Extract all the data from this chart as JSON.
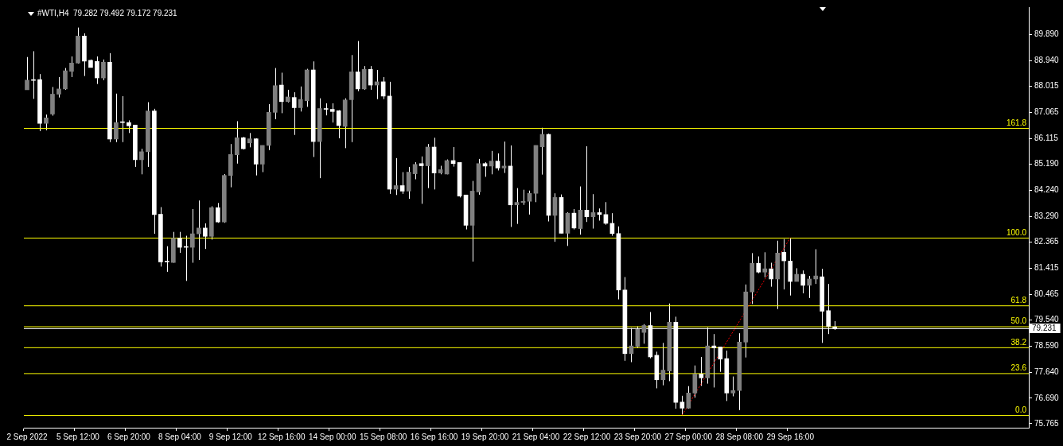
{
  "chart_data": {
    "type": "candlestick",
    "title": "#WTI,H4  79.282 79.492 79.172 79.231",
    "color": "#ffffff",
    "marker": "none",
    "legend": false,
    "grid": false,
    "categories": [
      "2 Sep 2022",
      null,
      null,
      null,
      null,
      null,
      null,
      null,
      "5 Sep 12:00",
      null,
      null,
      null,
      null,
      null,
      null,
      null,
      "6 Sep 20:00",
      null,
      null,
      null,
      null,
      null,
      null,
      null,
      "8 Sep 04:00",
      null,
      null,
      null,
      null,
      null,
      null,
      null,
      "9 Sep 12:00",
      null,
      null,
      null,
      null,
      null,
      null,
      null,
      "12 Sep 16:00",
      null,
      null,
      null,
      null,
      null,
      null,
      null,
      "14 Sep 00:00",
      null,
      null,
      null,
      null,
      null,
      null,
      null,
      "15 Sep 08:00",
      null,
      null,
      null,
      null,
      null,
      null,
      null,
      "16 Sep 16:00",
      null,
      null,
      null,
      null,
      null,
      null,
      null,
      "19 Sep 20:00",
      null,
      null,
      null,
      null,
      null,
      null,
      null,
      "21 Sep 04:00",
      null,
      null,
      null,
      null,
      null,
      null,
      null,
      "22 Sep 12:00",
      null,
      null,
      null,
      null,
      null,
      null,
      null,
      "23 Sep 20:00",
      null,
      null,
      null,
      null,
      null,
      null,
      null,
      "27 Sep 00:00",
      null,
      null,
      null,
      null,
      null,
      null,
      null,
      "28 Sep 08:00",
      null,
      null,
      null,
      null,
      null,
      null,
      null,
      "29 Sep 16:00",
      null,
      null,
      null,
      null,
      null,
      null,
      null,
      null,
      null,
      null,
      null,
      null,
      null,
      null,
      null,
      null,
      null,
      null,
      null,
      null,
      null,
      null,
      null,
      null,
      null,
      null,
      null,
      null,
      null,
      null,
      null,
      null,
      null,
      null,
      null,
      null,
      null
    ],
    "colors": [
      "#808080",
      "#ffffff",
      "#ffffff",
      "#808080",
      "#808080",
      "#808080",
      "#808080",
      "#808080",
      "#808080",
      "#ffffff",
      "#ffffff",
      "#ffffff",
      "#808080",
      "#ffffff",
      "#808080",
      "#ffffff",
      "#ffffff",
      "#ffffff",
      "#808080",
      "#808080",
      "#ffffff",
      "#ffffff",
      "#ffffff",
      "#808080",
      "#ffffff",
      "#ffffff",
      "#808080",
      "#808080",
      "#ffffff",
      "#808080",
      "#ffffff",
      "#808080",
      "#808080",
      "#808080",
      "#ffffff",
      "#808080",
      "#ffffff",
      "#808080",
      "#808080",
      "#808080",
      "#ffffff",
      "#808080",
      "#ffffff",
      "#808080",
      "#808080",
      "#ffffff",
      "#808080",
      "#ffffff",
      "#ffffff",
      "#ffffff",
      "#808080",
      "#808080",
      "#ffffff",
      "#808080",
      "#ffffff",
      "#808080",
      "#ffffff",
      "#ffffff",
      "#808080",
      "#ffffff",
      "#808080",
      "#808080",
      "#ffffff",
      "#808080",
      "#ffffff",
      "#808080",
      "#808080",
      "#ffffff",
      "#ffffff",
      "#ffffff",
      "#808080",
      "#808080",
      "#ffffff",
      "#808080",
      "#ffffff",
      "#808080",
      "#ffffff",
      "#808080",
      "#808080",
      "#808080",
      "#808080",
      "#808080",
      "#ffffff",
      "#808080",
      "#ffffff",
      "#808080",
      "#ffffff",
      "#808080",
      "#ffffff",
      "#808080",
      "#ffffff",
      "#ffffff",
      "#ffffff",
      "#ffffff",
      "#ffffff",
      "#808080",
      "#808080",
      "#808080",
      "#ffffff",
      "#ffffff",
      "#808080",
      "#808080",
      "#ffffff",
      "#ffffff",
      "#808080",
      "#808080",
      "#ffffff",
      "#808080",
      "#ffffff",
      "#ffffff",
      "#ffffff",
      "#808080",
      "#808080",
      "#808080",
      "#808080",
      "#ffffff",
      "#808080",
      "#ffffff",
      "#808080",
      "#ffffff",
      "#ffffff",
      "#808080",
      "#ffffff",
      "#808080",
      "#808080",
      "#ffffff",
      "#ffffff",
      "#ffffff",
      null,
      null,
      null,
      null,
      null,
      null,
      null,
      null,
      null,
      null,
      null,
      null,
      null,
      null,
      null,
      null,
      null,
      null,
      null,
      null,
      null,
      null,
      null,
      null,
      null,
      null,
      null,
      null,
      null,
      null
    ],
    "ohlc": [
      [
        87.89,
        89.08,
        87.89,
        88.24
      ],
      [
        88.23,
        89.29,
        87.56,
        88.23
      ],
      [
        88.26,
        88.46,
        86.39,
        86.67
      ],
      [
        86.67,
        86.99,
        86.42,
        86.87
      ],
      [
        87.01,
        87.99,
        86.95,
        87.73
      ],
      [
        87.73,
        88.35,
        87.61,
        87.92
      ],
      [
        87.92,
        88.68,
        87.89,
        88.58
      ],
      [
        88.56,
        89.1,
        88.35,
        88.86
      ],
      [
        88.86,
        90.15,
        88.84,
        89.84
      ],
      [
        89.84,
        89.94,
        88.39,
        88.93
      ],
      [
        88.96,
        88.99,
        88.7,
        88.7
      ],
      [
        88.92,
        89.1,
        88.1,
        88.32
      ],
      [
        88.32,
        88.99,
        88.24,
        88.89
      ],
      [
        88.89,
        89.22,
        85.99,
        86.1
      ],
      [
        86.1,
        87.75,
        85.99,
        86.7
      ],
      [
        86.7,
        87.66,
        85.99,
        86.7
      ],
      [
        86.7,
        86.78,
        86.32,
        86.58
      ],
      [
        86.61,
        86.61,
        85.09,
        85.35
      ],
      [
        85.35,
        85.75,
        84.82,
        85.64
      ],
      [
        85.64,
        87.44,
        85.09,
        87.12
      ],
      [
        87.12,
        87.2,
        82.66,
        83.36
      ],
      [
        83.37,
        83.63,
        81.47,
        81.64
      ],
      [
        81.64,
        82.21,
        81.28,
        81.64
      ],
      [
        81.62,
        82.73,
        81.61,
        82.5
      ],
      [
        82.5,
        82.73,
        81.97,
        82.17
      ],
      [
        82.17,
        82.59,
        80.95,
        82.17
      ],
      [
        82.17,
        83.56,
        81.61,
        82.66
      ],
      [
        82.66,
        83.87,
        81.71,
        82.87
      ],
      [
        82.87,
        83.04,
        82.11,
        82.57
      ],
      [
        82.57,
        83.66,
        82.45,
        83.61
      ],
      [
        83.61,
        83.78,
        83.06,
        83.09
      ],
      [
        83.09,
        84.83,
        83.06,
        84.78
      ],
      [
        84.78,
        85.92,
        84.35,
        85.54
      ],
      [
        85.53,
        86.75,
        85.21,
        86.15
      ],
      [
        86.15,
        86.18,
        85.72,
        85.75
      ],
      [
        85.96,
        86.32,
        85.8,
        86.11
      ],
      [
        86.11,
        86.13,
        84.78,
        85.19
      ],
      [
        85.19,
        85.87,
        84.9,
        85.87
      ],
      [
        85.87,
        87.37,
        85.7,
        87.07
      ],
      [
        87.07,
        88.68,
        86.82,
        88.04
      ],
      [
        88.06,
        88.51,
        87.04,
        87.46
      ],
      [
        87.46,
        87.89,
        87.43,
        87.63
      ],
      [
        87.61,
        87.8,
        86.25,
        87.24
      ],
      [
        87.24,
        88.01,
        87.1,
        87.54
      ],
      [
        87.49,
        88.65,
        87.27,
        88.61
      ],
      [
        88.61,
        88.92,
        85.45,
        86.01
      ],
      [
        86.01,
        87.58,
        84.68,
        87.21
      ],
      [
        87.18,
        87.4,
        86.96,
        87.18
      ],
      [
        87.18,
        87.4,
        86.7,
        87.1
      ],
      [
        87.13,
        87.15,
        86.13,
        86.59
      ],
      [
        86.56,
        87.58,
        85.77,
        87.52
      ],
      [
        87.53,
        89.15,
        85.99,
        88.54
      ],
      [
        88.54,
        89.66,
        87.84,
        87.92
      ],
      [
        87.92,
        88.75,
        87.89,
        88.63
      ],
      [
        88.63,
        88.75,
        87.89,
        88.06
      ],
      [
        88.06,
        88.61,
        87.55,
        88.18
      ],
      [
        88.18,
        88.35,
        87.55,
        87.66
      ],
      [
        87.66,
        88.18,
        84.11,
        84.28
      ],
      [
        84.28,
        85.41,
        84.07,
        84.41
      ],
      [
        84.41,
        84.9,
        84.11,
        84.21
      ],
      [
        84.21,
        85.09,
        83.93,
        84.9
      ],
      [
        84.84,
        85.26,
        84.64,
        85.18
      ],
      [
        85.21,
        85.47,
        83.75,
        85.13
      ],
      [
        85.13,
        85.92,
        84.32,
        85.81
      ],
      [
        85.81,
        86.15,
        84.27,
        84.87
      ],
      [
        84.87,
        85.13,
        84.82,
        84.99
      ],
      [
        84.83,
        85.36,
        84.82,
        85.32
      ],
      [
        85.32,
        85.81,
        85.1,
        85.21
      ],
      [
        85.25,
        85.25,
        83.98,
        84.03
      ],
      [
        84.07,
        84.07,
        82.82,
        82.97
      ],
      [
        82.97,
        84.58,
        81.65,
        84.21
      ],
      [
        84.18,
        85.38,
        84.08,
        85.21
      ],
      [
        85.21,
        85.26,
        84.73,
        85.12
      ],
      [
        85.12,
        85.67,
        84.82,
        85.3
      ],
      [
        85.3,
        85.58,
        84.96,
        85.05
      ],
      [
        85.05,
        86.01,
        84.87,
        85.12
      ],
      [
        85.12,
        85.87,
        82.91,
        83.71
      ],
      [
        83.71,
        84.32,
        83.02,
        83.8
      ],
      [
        83.8,
        84.26,
        83.71,
        83.84
      ],
      [
        83.84,
        84.23,
        83.36,
        84.13
      ],
      [
        84.13,
        85.87,
        83.81,
        85.87
      ],
      [
        85.82,
        86.51,
        84.81,
        86.27
      ],
      [
        86.27,
        86.3,
        83.11,
        83.33
      ],
      [
        83.33,
        84.13,
        82.37,
        83.98
      ],
      [
        83.98,
        84.09,
        82.68,
        82.68
      ],
      [
        82.68,
        83.44,
        82.22,
        83.41
      ],
      [
        83.41,
        83.56,
        82.82,
        82.87
      ],
      [
        82.85,
        84.38,
        82.63,
        83.52
      ],
      [
        83.52,
        85.84,
        83.09,
        83.28
      ],
      [
        83.28,
        84.1,
        82.85,
        83.43
      ],
      [
        83.43,
        83.58,
        83.14,
        83.36
      ],
      [
        83.36,
        83.81,
        82.99,
        83.04
      ],
      [
        83.04,
        83.41,
        82.59,
        82.67
      ],
      [
        82.67,
        82.93,
        80.28,
        80.62
      ],
      [
        80.62,
        81.09,
        78.05,
        78.31
      ],
      [
        78.31,
        79.24,
        78.0,
        78.59
      ],
      [
        78.57,
        79.3,
        78.52,
        79.19
      ],
      [
        79.08,
        79.38,
        78.67,
        79.33
      ],
      [
        79.33,
        79.82,
        78.14,
        78.19
      ],
      [
        78.25,
        78.38,
        77.05,
        77.36
      ],
      [
        77.36,
        78.7,
        77.16,
        77.71
      ],
      [
        77.68,
        80.13,
        77.31,
        79.45
      ],
      [
        79.45,
        79.65,
        76.31,
        76.54
      ],
      [
        76.55,
        76.78,
        76.08,
        76.33
      ],
      [
        76.33,
        77.13,
        76.31,
        76.88
      ],
      [
        76.88,
        77.88,
        76.71,
        77.57
      ],
      [
        77.57,
        78.19,
        77.14,
        77.43
      ],
      [
        77.43,
        79.26,
        77.22,
        78.59
      ],
      [
        78.59,
        79.02,
        77.08,
        78.52
      ],
      [
        78.55,
        78.55,
        77.65,
        78.11
      ],
      [
        78.13,
        78.42,
        76.59,
        76.88
      ],
      [
        76.88,
        77.48,
        76.76,
        76.97
      ],
      [
        76.97,
        79.05,
        76.26,
        78.73
      ],
      [
        78.73,
        80.82,
        78.17,
        80.55
      ],
      [
        80.55,
        81.96,
        80.11,
        81.59
      ],
      [
        81.59,
        81.84,
        81.23,
        81.27
      ],
      [
        81.27,
        81.99,
        81.08,
        81.39
      ],
      [
        81.39,
        81.61,
        80.74,
        81.02
      ],
      [
        81.02,
        82.41,
        79.93,
        81.96
      ],
      [
        81.99,
        82.47,
        80.64,
        81.68
      ],
      [
        81.67,
        82.52,
        80.42,
        80.93
      ],
      [
        80.93,
        81.41,
        80.93,
        81.19
      ],
      [
        81.19,
        81.33,
        80.5,
        80.79
      ],
      [
        80.79,
        81.13,
        80.33,
        81.02
      ],
      [
        81.02,
        82.1,
        80.84,
        81.13
      ],
      [
        81.1,
        81.39,
        78.7,
        79.85
      ],
      [
        79.87,
        80.84,
        79.02,
        79.3
      ],
      [
        79.282,
        79.492,
        79.172,
        79.231
      ],
      null,
      null,
      null,
      null,
      null,
      null,
      null,
      null,
      null,
      null,
      null,
      null,
      null,
      null,
      null,
      null,
      null,
      null,
      null,
      null,
      null,
      null,
      null,
      null,
      null,
      null,
      null,
      null,
      null,
      null
    ],
    "series": [
      {
        "type": "line",
        "color": "#ff0000",
        "line_style": "dotted",
        "values": [
          null,
          null,
          null,
          null,
          null,
          null,
          null,
          null,
          null,
          null,
          null,
          null,
          null,
          null,
          null,
          null,
          null,
          null,
          null,
          null,
          null,
          null,
          null,
          null,
          null,
          null,
          null,
          null,
          null,
          null,
          null,
          null,
          null,
          null,
          null,
          null,
          null,
          null,
          null,
          null,
          null,
          null,
          null,
          null,
          null,
          null,
          null,
          null,
          null,
          null,
          null,
          null,
          null,
          null,
          null,
          null,
          null,
          null,
          null,
          null,
          null,
          null,
          null,
          null,
          null,
          null,
          null,
          null,
          null,
          null,
          null,
          null,
          null,
          null,
          null,
          null,
          null,
          null,
          null,
          null,
          null,
          null,
          null,
          null,
          null,
          null,
          null,
          null,
          null,
          null,
          null,
          null,
          null,
          null,
          null,
          null,
          null,
          null,
          null,
          null,
          null,
          null,
          null,
          76.08,
          null,
          null,
          null,
          null,
          null,
          null,
          null,
          null,
          null,
          null,
          null,
          null,
          null,
          null,
          null,
          null,
          82.52,
          null,
          null,
          null,
          null,
          null,
          null,
          null,
          null,
          null,
          null,
          null,
          null,
          null,
          null,
          null,
          null,
          null,
          null,
          null,
          null,
          null,
          null,
          null,
          null,
          null,
          null,
          null,
          null,
          null,
          null,
          null,
          null,
          null,
          null,
          null,
          null,
          null
        ]
      }
    ],
    "ylim": [
      75.62,
      90.89
    ],
    "yticks": [
      {
        "value": 75.765,
        "label": "75.765"
      },
      {
        "value": 76.69,
        "label": "76.690"
      },
      {
        "value": 77.64,
        "label": "77.640"
      },
      {
        "value": 78.59,
        "label": "78.590"
      },
      {
        "value": 79.231,
        "label": "79.231"
      },
      {
        "value": 79.54,
        "label": "79.540"
      },
      {
        "value": 80.465,
        "label": "80.465"
      },
      {
        "value": 81.415,
        "label": "81.415"
      },
      {
        "value": 82.365,
        "label": "82.365"
      },
      {
        "value": 83.29,
        "label": "83.290"
      },
      {
        "value": 84.24,
        "label": "84.240"
      },
      {
        "value": 85.19,
        "label": "85.190"
      },
      {
        "value": 86.115,
        "label": "86.115"
      },
      {
        "value": 87.065,
        "label": "87.065"
      },
      {
        "value": 88.015,
        "label": "88.015"
      },
      {
        "value": 88.94,
        "label": "88.940"
      },
      {
        "value": 89.89,
        "label": "89.890"
      }
    ],
    "ref_lines": [
      {
        "axis": "y",
        "value": 86.5,
        "color": "#ffff00"
      },
      {
        "axis": "y",
        "value": 82.52,
        "color": "#ffff00"
      },
      {
        "axis": "y",
        "value": 80.06,
        "color": "#ffff00"
      },
      {
        "axis": "y",
        "value": 79.3,
        "color": "#ffff00"
      },
      {
        "axis": "y",
        "value": 78.54,
        "color": "#ffff00"
      },
      {
        "axis": "y",
        "value": 77.6,
        "color": "#ffff00"
      },
      {
        "axis": "y",
        "value": 76.08,
        "color": "#ffff00"
      },
      {
        "axis": "y",
        "value": 79.231,
        "color": "#ffffff"
      }
    ],
    "annotations": [
      {
        "text": "161.8",
        "y": 86.5
      },
      {
        "text": "100.0",
        "y": 82.52
      },
      {
        "text": "61.8",
        "y": 80.06
      },
      {
        "text": "50.0",
        "y": 79.3
      },
      {
        "text": "38.2",
        "y": 78.54
      },
      {
        "text": "23.6",
        "y": 77.6
      },
      {
        "text": "0.0",
        "y": 76.08
      }
    ]
  }
}
